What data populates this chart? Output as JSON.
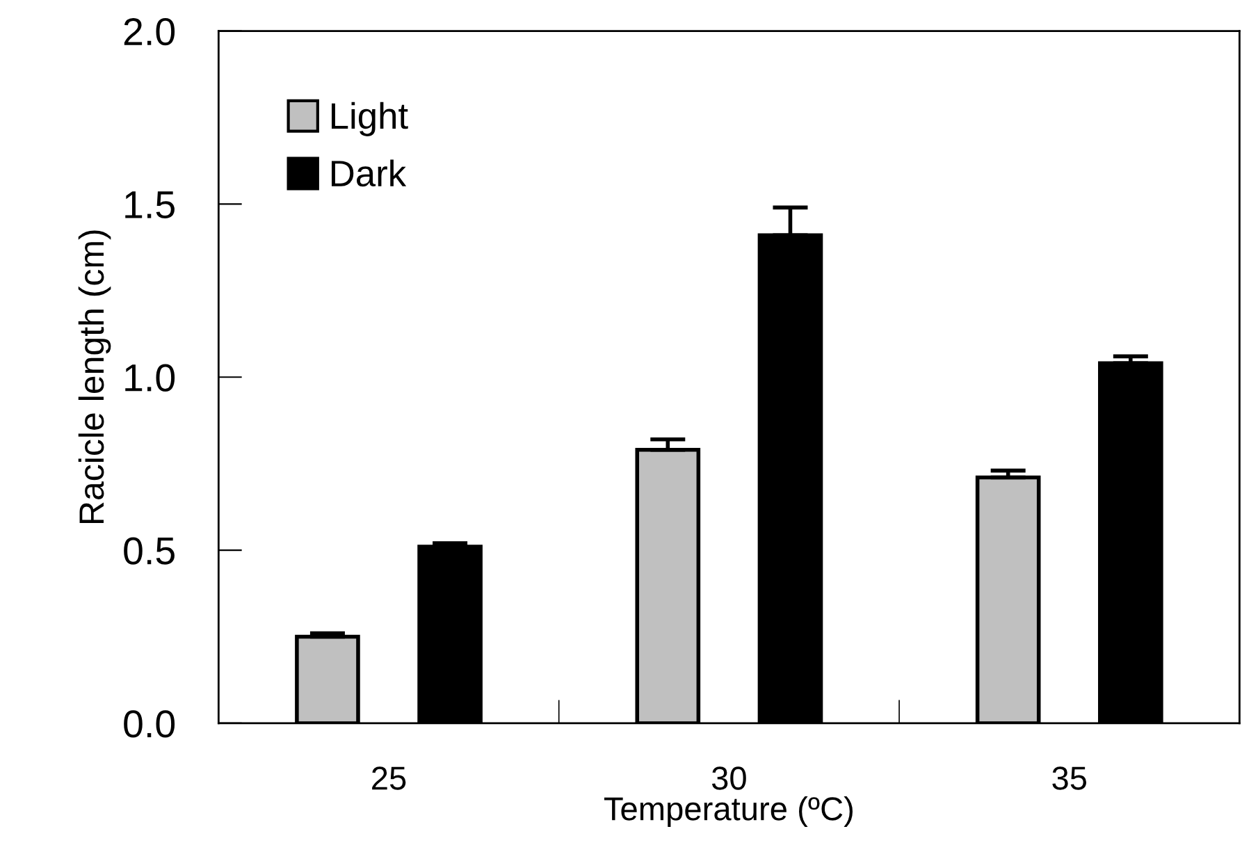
{
  "chart_data": {
    "type": "bar",
    "xlabel": "Temperature (ºC)",
    "ylabel": "Racicle length (cm)",
    "categories": [
      "25",
      "30",
      "35"
    ],
    "series": [
      {
        "name": "Light",
        "color": "#c0c0c0",
        "values": [
          0.25,
          0.79,
          0.71
        ],
        "errors": [
          0.01,
          0.03,
          0.02
        ]
      },
      {
        "name": "Dark",
        "color": "#000000",
        "values": [
          0.51,
          1.41,
          1.04
        ],
        "errors": [
          0.01,
          0.08,
          0.02
        ]
      }
    ],
    "ylim": [
      0,
      2.0
    ],
    "yticks": [
      {
        "value": 0,
        "label": "0.0"
      },
      {
        "value": 0.5,
        "label": "0.5"
      },
      {
        "value": 1.0,
        "label": "1.0"
      },
      {
        "value": 1.5,
        "label": "1.5"
      },
      {
        "value": 2.0,
        "label": "2.0"
      }
    ],
    "grid": false,
    "legend": "top left"
  }
}
